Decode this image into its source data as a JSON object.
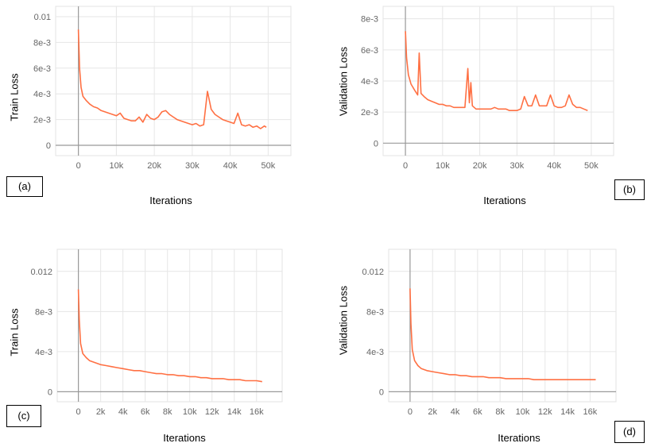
{
  "chart_data": [
    {
      "type": "line",
      "panel_label": "(a)",
      "xlabel": "Iterations",
      "ylabel": "Train Loss",
      "x_ticks": [
        "0",
        "10k",
        "20k",
        "30k",
        "40k",
        "50k"
      ],
      "x_tick_values": [
        0,
        10000,
        20000,
        30000,
        40000,
        50000
      ],
      "y_ticks": [
        "0",
        "2e-3",
        "4e-3",
        "6e-3",
        "8e-3",
        "0.01"
      ],
      "y_tick_values": [
        0,
        0.002,
        0.004,
        0.006,
        0.008,
        0.01
      ],
      "xlim": [
        -6000,
        56000
      ],
      "ylim": [
        -0.0008,
        0.0108
      ],
      "grid": true,
      "color": "#ff7043",
      "series": [
        {
          "x": [
            0,
            300,
            700,
            1200,
            2000,
            3000,
            4000,
            5000,
            6000,
            7000,
            8000,
            9000,
            10000,
            11000,
            12000,
            13000,
            14000,
            15000,
            16000,
            17000,
            18000,
            19000,
            20000,
            21000,
            22000,
            23000,
            24000,
            25000,
            26000,
            27000,
            28000,
            29000,
            30000,
            31000,
            32000,
            33000,
            34000,
            35000,
            36000,
            37000,
            38000,
            39000,
            40000,
            41000,
            42000,
            43000,
            44000,
            45000,
            46000,
            47000,
            48000,
            49000,
            49500
          ],
          "y": [
            0.009,
            0.006,
            0.0045,
            0.0038,
            0.0035,
            0.0032,
            0.003,
            0.0029,
            0.0027,
            0.0026,
            0.0025,
            0.0024,
            0.0023,
            0.0025,
            0.0021,
            0.002,
            0.0019,
            0.0019,
            0.0022,
            0.0018,
            0.0024,
            0.0021,
            0.002,
            0.0022,
            0.0026,
            0.0027,
            0.0024,
            0.0022,
            0.002,
            0.0019,
            0.0018,
            0.0017,
            0.0016,
            0.0017,
            0.0015,
            0.0016,
            0.0042,
            0.0028,
            0.0024,
            0.0022,
            0.002,
            0.0019,
            0.0018,
            0.0017,
            0.0025,
            0.0016,
            0.0015,
            0.0016,
            0.0014,
            0.0015,
            0.0013,
            0.0015,
            0.0014
          ]
        }
      ]
    },
    {
      "type": "line",
      "panel_label": "(b)",
      "xlabel": "Iterations",
      "ylabel": "Validation Loss",
      "x_ticks": [
        "0",
        "10k",
        "20k",
        "30k",
        "40k",
        "50k"
      ],
      "x_tick_values": [
        0,
        10000,
        20000,
        30000,
        40000,
        50000
      ],
      "y_ticks": [
        "0",
        "2e-3",
        "4e-3",
        "6e-3",
        "8e-3"
      ],
      "y_tick_values": [
        0,
        0.002,
        0.004,
        0.006,
        0.008
      ],
      "xlim": [
        -6000,
        56000
      ],
      "ylim": [
        -0.0008,
        0.0088
      ],
      "grid": true,
      "color": "#ff7043",
      "series": [
        {
          "x": [
            0,
            300,
            800,
            1500,
            2500,
            3300,
            3700,
            4200,
            5000,
            6000,
            7000,
            8000,
            9000,
            10000,
            11000,
            12000,
            13000,
            14000,
            15000,
            16000,
            16800,
            17200,
            17600,
            18000,
            18500,
            19000,
            20000,
            21000,
            22000,
            23000,
            24000,
            25000,
            26000,
            27000,
            28000,
            29000,
            30000,
            31000,
            32000,
            33000,
            34000,
            35000,
            36000,
            37000,
            38000,
            39000,
            40000,
            41000,
            42000,
            43000,
            44000,
            45000,
            46000,
            47000,
            48000,
            49000
          ],
          "y": [
            0.0072,
            0.0055,
            0.0044,
            0.0038,
            0.0034,
            0.0031,
            0.0058,
            0.0032,
            0.003,
            0.0028,
            0.0027,
            0.0026,
            0.0025,
            0.0025,
            0.0024,
            0.0024,
            0.0023,
            0.0023,
            0.0023,
            0.0023,
            0.0048,
            0.0026,
            0.0039,
            0.0024,
            0.0023,
            0.0022,
            0.0022,
            0.0022,
            0.0022,
            0.0022,
            0.0023,
            0.0022,
            0.0022,
            0.0022,
            0.0021,
            0.0021,
            0.0021,
            0.0022,
            0.003,
            0.0024,
            0.0024,
            0.0031,
            0.0024,
            0.0024,
            0.0024,
            0.0031,
            0.0024,
            0.0023,
            0.0023,
            0.0024,
            0.0031,
            0.0025,
            0.0023,
            0.0023,
            0.0022,
            0.0021
          ]
        }
      ]
    },
    {
      "type": "line",
      "panel_label": "(c)",
      "xlabel": "Iterations",
      "ylabel": "Train Loss",
      "x_ticks": [
        "0",
        "2k",
        "4k",
        "6k",
        "8k",
        "10k",
        "12k",
        "14k",
        "16k"
      ],
      "x_tick_values": [
        0,
        2000,
        4000,
        6000,
        8000,
        10000,
        12000,
        14000,
        16000
      ],
      "y_ticks": [
        "0",
        "4e-3",
        "8e-3",
        "0.012"
      ],
      "y_tick_values": [
        0,
        0.004,
        0.008,
        0.012
      ],
      "xlim": [
        -1900,
        18300
      ],
      "ylim": [
        -0.001,
        0.0142
      ],
      "grid": true,
      "color": "#ff7043",
      "series": [
        {
          "x": [
            0,
            80,
            200,
            400,
            700,
            1000,
            1500,
            2000,
            2500,
            3000,
            3500,
            4000,
            4500,
            5000,
            5500,
            6000,
            6500,
            7000,
            7500,
            8000,
            8500,
            9000,
            9500,
            10000,
            10500,
            11000,
            11500,
            12000,
            12500,
            13000,
            13500,
            14000,
            14500,
            15000,
            15500,
            16000,
            16500
          ],
          "y": [
            0.0102,
            0.0072,
            0.0048,
            0.0038,
            0.0034,
            0.0031,
            0.0029,
            0.0027,
            0.0026,
            0.0025,
            0.0024,
            0.0023,
            0.0022,
            0.0021,
            0.0021,
            0.002,
            0.0019,
            0.0018,
            0.0018,
            0.0017,
            0.0017,
            0.0016,
            0.0016,
            0.0015,
            0.0015,
            0.0014,
            0.0014,
            0.0013,
            0.0013,
            0.0013,
            0.0012,
            0.0012,
            0.0012,
            0.0011,
            0.0011,
            0.0011,
            0.001
          ]
        }
      ]
    },
    {
      "type": "line",
      "panel_label": "(d)",
      "xlabel": "Iterations",
      "ylabel": "Validation Loss",
      "x_ticks": [
        "0",
        "2k",
        "4k",
        "6k",
        "8k",
        "10k",
        "12k",
        "14k",
        "16k"
      ],
      "x_tick_values": [
        0,
        2000,
        4000,
        6000,
        8000,
        10000,
        12000,
        14000,
        16000
      ],
      "y_ticks": [
        "0",
        "4e-3",
        "8e-3",
        "0.012"
      ],
      "y_tick_values": [
        0,
        0.004,
        0.008,
        0.012
      ],
      "xlim": [
        -1900,
        18300
      ],
      "ylim": [
        -0.001,
        0.0142
      ],
      "grid": true,
      "color": "#ff7043",
      "series": [
        {
          "x": [
            0,
            80,
            200,
            400,
            700,
            1000,
            1500,
            2000,
            2500,
            3000,
            3500,
            4000,
            4500,
            5000,
            5500,
            6000,
            6500,
            7000,
            7500,
            8000,
            8500,
            9000,
            9500,
            10000,
            10500,
            11000,
            11500,
            12000,
            12500,
            13000,
            13500,
            14000,
            14500,
            15000,
            15500,
            16000,
            16500
          ],
          "y": [
            0.0103,
            0.0068,
            0.0042,
            0.0031,
            0.0026,
            0.0023,
            0.0021,
            0.002,
            0.0019,
            0.0018,
            0.0017,
            0.0017,
            0.0016,
            0.0016,
            0.0015,
            0.0015,
            0.0015,
            0.0014,
            0.0014,
            0.0014,
            0.0013,
            0.0013,
            0.0013,
            0.0013,
            0.0013,
            0.0012,
            0.0012,
            0.0012,
            0.0012,
            0.0012,
            0.0012,
            0.0012,
            0.0012,
            0.0012,
            0.0012,
            0.0012,
            0.0012
          ]
        }
      ]
    }
  ]
}
